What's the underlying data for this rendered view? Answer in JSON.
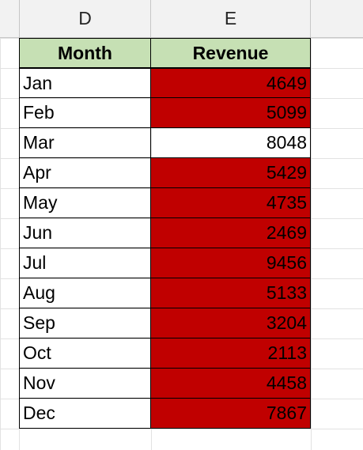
{
  "columns": {
    "d_label": "D",
    "e_label": "E"
  },
  "table": {
    "header": {
      "month": "Month",
      "revenue": "Revenue"
    },
    "rows": [
      {
        "month": "Jan",
        "revenue": "4649",
        "highlight": true
      },
      {
        "month": "Feb",
        "revenue": "5099",
        "highlight": true
      },
      {
        "month": "Mar",
        "revenue": "8048",
        "highlight": false
      },
      {
        "month": "Apr",
        "revenue": "5429",
        "highlight": true
      },
      {
        "month": "May",
        "revenue": "4735",
        "highlight": true
      },
      {
        "month": "Jun",
        "revenue": "2469",
        "highlight": true
      },
      {
        "month": "Jul",
        "revenue": "9456",
        "highlight": true
      },
      {
        "month": "Aug",
        "revenue": "5133",
        "highlight": true
      },
      {
        "month": "Sep",
        "revenue": "3204",
        "highlight": true
      },
      {
        "month": "Oct",
        "revenue": "2113",
        "highlight": true
      },
      {
        "month": "Nov",
        "revenue": "4458",
        "highlight": true
      },
      {
        "month": "Dec",
        "revenue": "7867",
        "highlight": true
      }
    ]
  },
  "colors": {
    "header_fill": "#c6e0b4",
    "highlight_fill": "#c00000"
  }
}
